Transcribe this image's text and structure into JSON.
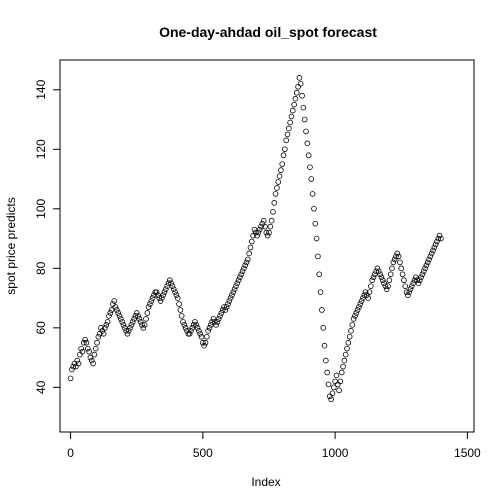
{
  "chart_data": {
    "type": "scatter",
    "title": "One-day-ahdad oil_spot forecast",
    "xlabel": "Index",
    "ylabel": "spot price predicts",
    "xlim": [
      -40,
      1525
    ],
    "ylim": [
      25,
      150
    ],
    "x_ticks": [
      0,
      500,
      1000,
      1500
    ],
    "y_ticks": [
      40,
      60,
      80,
      100,
      120,
      140
    ],
    "grid": false,
    "marker": "open-circle",
    "marker_color": "#000000",
    "series": [
      {
        "points": [
          [
            0,
            43
          ],
          [
            5,
            46
          ],
          [
            10,
            47
          ],
          [
            15,
            48
          ],
          [
            20,
            47
          ],
          [
            25,
            49
          ],
          [
            30,
            48
          ],
          [
            35,
            51
          ],
          [
            40,
            53
          ],
          [
            45,
            52
          ],
          [
            50,
            55
          ],
          [
            55,
            56
          ],
          [
            60,
            55
          ],
          [
            65,
            53
          ],
          [
            70,
            52
          ],
          [
            75,
            50
          ],
          [
            80,
            49
          ],
          [
            85,
            48
          ],
          [
            90,
            51
          ],
          [
            95,
            53
          ],
          [
            100,
            55
          ],
          [
            105,
            57
          ],
          [
            110,
            58
          ],
          [
            115,
            60
          ],
          [
            120,
            59
          ],
          [
            125,
            58
          ],
          [
            130,
            60
          ],
          [
            135,
            61
          ],
          [
            140,
            62
          ],
          [
            145,
            64
          ],
          [
            150,
            65
          ],
          [
            155,
            66
          ],
          [
            160,
            68
          ],
          [
            165,
            69
          ],
          [
            170,
            67
          ],
          [
            175,
            66
          ],
          [
            180,
            65
          ],
          [
            185,
            64
          ],
          [
            190,
            63
          ],
          [
            195,
            62
          ],
          [
            200,
            61
          ],
          [
            205,
            60
          ],
          [
            210,
            59
          ],
          [
            215,
            58
          ],
          [
            220,
            59
          ],
          [
            225,
            60
          ],
          [
            230,
            61
          ],
          [
            235,
            62
          ],
          [
            240,
            63
          ],
          [
            245,
            64
          ],
          [
            250,
            65
          ],
          [
            255,
            64
          ],
          [
            260,
            63
          ],
          [
            265,
            62
          ],
          [
            270,
            61
          ],
          [
            275,
            60
          ],
          [
            280,
            61
          ],
          [
            285,
            63
          ],
          [
            290,
            65
          ],
          [
            295,
            67
          ],
          [
            300,
            68
          ],
          [
            305,
            69
          ],
          [
            310,
            70
          ],
          [
            315,
            71
          ],
          [
            320,
            72
          ],
          [
            325,
            72
          ],
          [
            330,
            71
          ],
          [
            335,
            70
          ],
          [
            340,
            69
          ],
          [
            345,
            70
          ],
          [
            350,
            71
          ],
          [
            355,
            72
          ],
          [
            360,
            73
          ],
          [
            365,
            74
          ],
          [
            370,
            75
          ],
          [
            375,
            76
          ],
          [
            380,
            75
          ],
          [
            385,
            74
          ],
          [
            390,
            73
          ],
          [
            395,
            72
          ],
          [
            400,
            71
          ],
          [
            405,
            70
          ],
          [
            410,
            68
          ],
          [
            415,
            66
          ],
          [
            420,
            64
          ],
          [
            425,
            62
          ],
          [
            430,
            61
          ],
          [
            435,
            60
          ],
          [
            440,
            59
          ],
          [
            445,
            58
          ],
          [
            450,
            58
          ],
          [
            455,
            59
          ],
          [
            460,
            60
          ],
          [
            465,
            61
          ],
          [
            470,
            62
          ],
          [
            475,
            61
          ],
          [
            480,
            60
          ],
          [
            485,
            59
          ],
          [
            490,
            58
          ],
          [
            495,
            57
          ],
          [
            500,
            55
          ],
          [
            505,
            54
          ],
          [
            510,
            55
          ],
          [
            515,
            57
          ],
          [
            520,
            59
          ],
          [
            525,
            60
          ],
          [
            530,
            61
          ],
          [
            535,
            62
          ],
          [
            540,
            63
          ],
          [
            545,
            62
          ],
          [
            550,
            61
          ],
          [
            555,
            62
          ],
          [
            560,
            63
          ],
          [
            565,
            64
          ],
          [
            570,
            65
          ],
          [
            575,
            66
          ],
          [
            580,
            67
          ],
          [
            585,
            66
          ],
          [
            590,
            67
          ],
          [
            595,
            68
          ],
          [
            600,
            69
          ],
          [
            605,
            70
          ],
          [
            610,
            71
          ],
          [
            615,
            72
          ],
          [
            620,
            73
          ],
          [
            625,
            74
          ],
          [
            630,
            75
          ],
          [
            635,
            76
          ],
          [
            640,
            77
          ],
          [
            645,
            78
          ],
          [
            650,
            79
          ],
          [
            655,
            80
          ],
          [
            660,
            81
          ],
          [
            665,
            82
          ],
          [
            670,
            83
          ],
          [
            675,
            85
          ],
          [
            680,
            87
          ],
          [
            685,
            89
          ],
          [
            690,
            91
          ],
          [
            695,
            93
          ],
          [
            700,
            92
          ],
          [
            705,
            91
          ],
          [
            710,
            92
          ],
          [
            715,
            93
          ],
          [
            720,
            94
          ],
          [
            725,
            95
          ],
          [
            730,
            96
          ],
          [
            735,
            94
          ],
          [
            740,
            92
          ],
          [
            745,
            91
          ],
          [
            750,
            92
          ],
          [
            755,
            94
          ],
          [
            760,
            96
          ],
          [
            765,
            99
          ],
          [
            770,
            102
          ],
          [
            775,
            105
          ],
          [
            780,
            107
          ],
          [
            785,
            109
          ],
          [
            790,
            111
          ],
          [
            795,
            113
          ],
          [
            800,
            115
          ],
          [
            805,
            118
          ],
          [
            810,
            120
          ],
          [
            815,
            123
          ],
          [
            820,
            125
          ],
          [
            825,
            127
          ],
          [
            830,
            129
          ],
          [
            835,
            131
          ],
          [
            840,
            133
          ],
          [
            845,
            135
          ],
          [
            850,
            137
          ],
          [
            855,
            139
          ],
          [
            860,
            141
          ],
          [
            865,
            144
          ],
          [
            870,
            142
          ],
          [
            875,
            138
          ],
          [
            880,
            134
          ],
          [
            885,
            130
          ],
          [
            890,
            126
          ],
          [
            895,
            122
          ],
          [
            900,
            118
          ],
          [
            905,
            114
          ],
          [
            910,
            110
          ],
          [
            915,
            105
          ],
          [
            920,
            100
          ],
          [
            925,
            95
          ],
          [
            930,
            90
          ],
          [
            935,
            84
          ],
          [
            940,
            78
          ],
          [
            945,
            72
          ],
          [
            950,
            66
          ],
          [
            955,
            60
          ],
          [
            960,
            54
          ],
          [
            965,
            49
          ],
          [
            970,
            45
          ],
          [
            975,
            41
          ],
          [
            980,
            37
          ],
          [
            985,
            36
          ],
          [
            990,
            38
          ],
          [
            995,
            40
          ],
          [
            1000,
            42
          ],
          [
            1005,
            44
          ],
          [
            1010,
            41
          ],
          [
            1015,
            39
          ],
          [
            1020,
            42
          ],
          [
            1025,
            45
          ],
          [
            1030,
            47
          ],
          [
            1035,
            49
          ],
          [
            1040,
            51
          ],
          [
            1045,
            53
          ],
          [
            1050,
            55
          ],
          [
            1055,
            57
          ],
          [
            1060,
            59
          ],
          [
            1065,
            61
          ],
          [
            1070,
            63
          ],
          [
            1075,
            64
          ],
          [
            1080,
            65
          ],
          [
            1085,
            66
          ],
          [
            1090,
            67
          ],
          [
            1095,
            68
          ],
          [
            1100,
            69
          ],
          [
            1105,
            70
          ],
          [
            1110,
            71
          ],
          [
            1115,
            72
          ],
          [
            1120,
            71
          ],
          [
            1125,
            70
          ],
          [
            1130,
            72
          ],
          [
            1135,
            74
          ],
          [
            1140,
            76
          ],
          [
            1145,
            77
          ],
          [
            1150,
            78
          ],
          [
            1155,
            79
          ],
          [
            1160,
            80
          ],
          [
            1165,
            79
          ],
          [
            1170,
            78
          ],
          [
            1175,
            77
          ],
          [
            1180,
            76
          ],
          [
            1185,
            75
          ],
          [
            1190,
            74
          ],
          [
            1195,
            73
          ],
          [
            1200,
            74
          ],
          [
            1205,
            76
          ],
          [
            1210,
            78
          ],
          [
            1215,
            80
          ],
          [
            1220,
            82
          ],
          [
            1225,
            83
          ],
          [
            1230,
            84
          ],
          [
            1235,
            85
          ],
          [
            1240,
            84
          ],
          [
            1245,
            82
          ],
          [
            1250,
            80
          ],
          [
            1255,
            78
          ],
          [
            1260,
            76
          ],
          [
            1265,
            74
          ],
          [
            1270,
            72
          ],
          [
            1275,
            71
          ],
          [
            1280,
            72
          ],
          [
            1285,
            73
          ],
          [
            1290,
            74
          ],
          [
            1295,
            75
          ],
          [
            1300,
            76
          ],
          [
            1305,
            77
          ],
          [
            1310,
            76
          ],
          [
            1315,
            75
          ],
          [
            1320,
            76
          ],
          [
            1325,
            77
          ],
          [
            1330,
            78
          ],
          [
            1335,
            79
          ],
          [
            1340,
            80
          ],
          [
            1345,
            81
          ],
          [
            1350,
            82
          ],
          [
            1355,
            83
          ],
          [
            1360,
            84
          ],
          [
            1365,
            85
          ],
          [
            1370,
            86
          ],
          [
            1375,
            87
          ],
          [
            1380,
            88
          ],
          [
            1385,
            89
          ],
          [
            1390,
            90
          ],
          [
            1395,
            91
          ],
          [
            1400,
            90
          ]
        ]
      }
    ]
  }
}
